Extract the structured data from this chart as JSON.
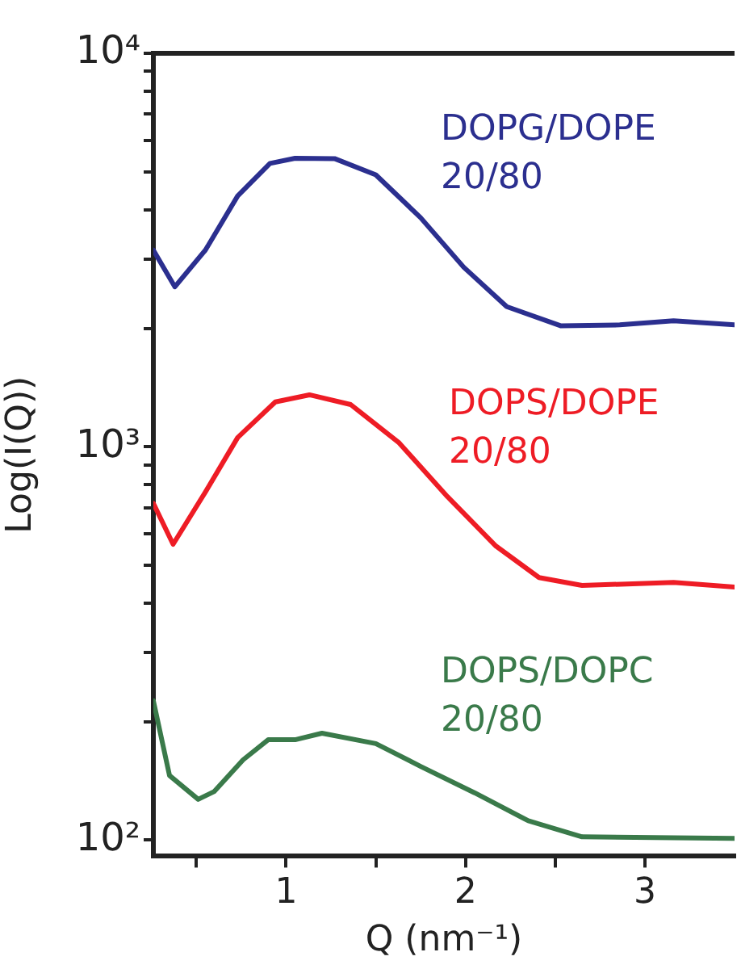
{
  "chart_data": {
    "type": "line",
    "xlabel": "Q (nm⁻¹)",
    "ylabel": "Log(I(Q))",
    "log": "y",
    "grid": false,
    "legend": false,
    "marker": "none",
    "line_style": "solid",
    "xlim": [
      0.26,
      3.5
    ],
    "xticks": [
      {
        "value": 0.5,
        "label": null
      },
      1,
      {
        "value": 1.5,
        "label": null
      },
      2,
      {
        "value": 2.5,
        "label": null
      },
      3
    ],
    "ylim": [
      91,
      10000
    ],
    "yticks": [
      {
        "value": 100,
        "label": "10²"
      },
      {
        "value": 200,
        "label": null
      },
      {
        "value": 300,
        "label": null
      },
      {
        "value": 400,
        "label": null
      },
      {
        "value": 500,
        "label": null
      },
      {
        "value": 600,
        "label": null
      },
      {
        "value": 700,
        "label": null
      },
      {
        "value": 800,
        "label": null
      },
      {
        "value": 900,
        "label": null
      },
      {
        "value": 1000,
        "label": "10³"
      },
      {
        "value": 2000,
        "label": null
      },
      {
        "value": 3000,
        "label": null
      },
      {
        "value": 4000,
        "label": null
      },
      {
        "value": 5000,
        "label": null
      },
      {
        "value": 6000,
        "label": null
      },
      {
        "value": 7000,
        "label": null
      },
      {
        "value": 8000,
        "label": null
      },
      {
        "value": 9000,
        "label": null
      },
      {
        "value": 10000,
        "label": "10⁴"
      }
    ],
    "series": [
      {
        "name": "DOPG/DOPE 20/80",
        "color": "#2b2f8f",
        "x": [
          0.26,
          0.38,
          0.55,
          0.73,
          0.91,
          1.05,
          1.27,
          1.5,
          1.75,
          1.99,
          2.23,
          2.53,
          2.86,
          3.16,
          3.5
        ],
        "values": [
          3160,
          2550,
          3160,
          4340,
          5250,
          5410,
          5400,
          4910,
          3820,
          2860,
          2270,
          2030,
          2040,
          2090,
          2040
        ]
      },
      {
        "name": "DOPS/DOPE 20/80",
        "color": "#ee1c25",
        "x": [
          0.26,
          0.37,
          0.55,
          0.73,
          0.94,
          1.13,
          1.36,
          1.63,
          1.9,
          2.17,
          2.41,
          2.65,
          3.16,
          3.5
        ],
        "values": [
          718,
          565,
          767,
          1055,
          1300,
          1355,
          1280,
          1023,
          746,
          559,
          465,
          444,
          452,
          440
        ]
      },
      {
        "name": "DOPS/DOPC 20/80",
        "color": "#3a7a4a",
        "x": [
          0.26,
          0.35,
          0.51,
          0.6,
          0.76,
          0.9,
          1.05,
          1.2,
          1.5,
          1.75,
          2.05,
          2.35,
          2.65,
          3.5
        ],
        "values": [
          226,
          146,
          127,
          133,
          160,
          180,
          180,
          187,
          176,
          154,
          132,
          112,
          102,
          101
        ]
      }
    ]
  }
}
